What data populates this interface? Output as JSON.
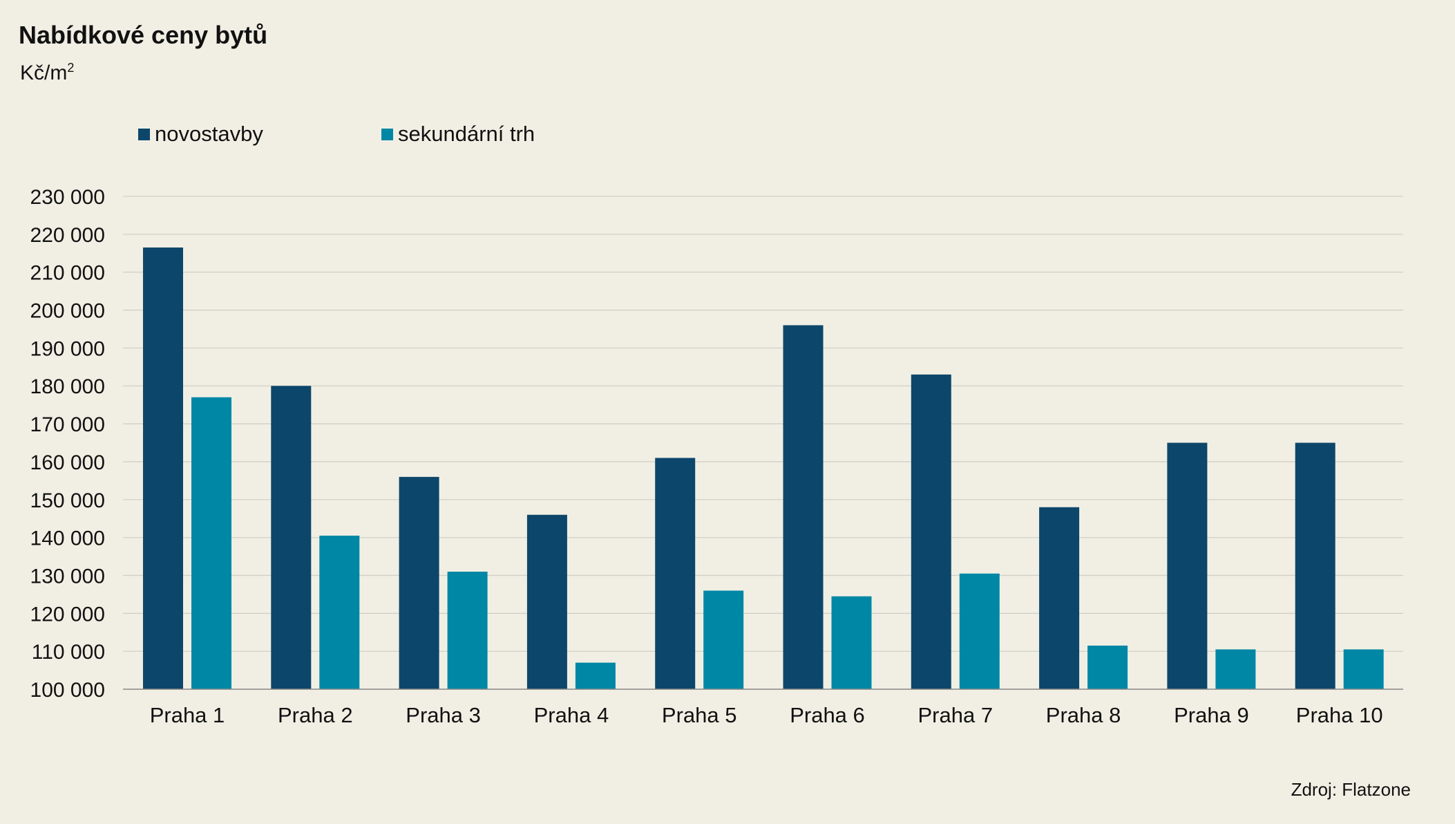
{
  "header": {
    "title": "Nabídkové ceny bytů",
    "unit_base": "Kč/m",
    "unit_sup": "2"
  },
  "footer": {
    "source": "Zdroj: Flatzone"
  },
  "chart_data": {
    "type": "bar",
    "categories": [
      "Praha 1",
      "Praha 2",
      "Praha 3",
      "Praha 4",
      "Praha 5",
      "Praha 6",
      "Praha 7",
      "Praha 8",
      "Praha 9",
      "Praha 10"
    ],
    "series": [
      {
        "name": "novostavby",
        "color": "#0d466b",
        "values": [
          216500,
          180000,
          156000,
          146000,
          161000,
          196000,
          183000,
          148000,
          165000,
          165000
        ]
      },
      {
        "name": "sekundární trh",
        "color": "#0087a5",
        "values": [
          177000,
          140500,
          131000,
          107000,
          126000,
          124500,
          130500,
          111500,
          110500,
          110500
        ]
      }
    ],
    "ylim": [
      100000,
      230000
    ],
    "yticks": [
      100000,
      110000,
      120000,
      130000,
      140000,
      150000,
      160000,
      170000,
      180000,
      190000,
      200000,
      210000,
      220000,
      230000
    ],
    "ytick_labels": [
      "100 000",
      "110 000",
      "120 000",
      "130 000",
      "140 000",
      "150 000",
      "160 000",
      "170 000",
      "180 000",
      "190 000",
      "200 000",
      "210 000",
      "220 000",
      "230 000"
    ],
    "grid": true,
    "legend_position": "top-left"
  }
}
